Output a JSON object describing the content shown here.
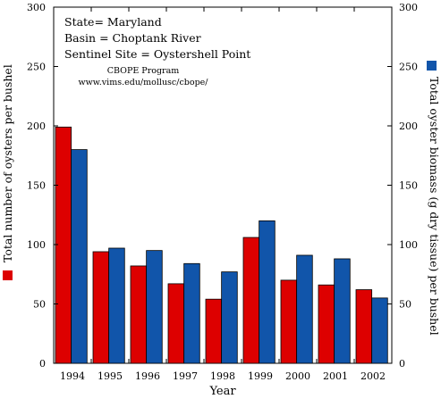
{
  "chart_data": {
    "type": "bar",
    "categories": [
      "1994",
      "1995",
      "1996",
      "1997",
      "1998",
      "1999",
      "2000",
      "2001",
      "2002"
    ],
    "series": [
      {
        "name": "Total number of oysters per bushel",
        "axis": "left",
        "color": "#dd0000",
        "values": [
          199,
          94,
          82,
          67,
          54,
          106,
          70,
          66,
          62
        ]
      },
      {
        "name": "Total oyster biomass (g dry tissue) per bushel",
        "axis": "right",
        "color": "#1155aa",
        "values": [
          180,
          97,
          95,
          84,
          77,
          120,
          91,
          88,
          55
        ]
      }
    ],
    "xlabel": "Year",
    "ylabel_left": "Total number of oysters per bushel",
    "ylabel_right": "Total oyster biomass (g dry tissue) per bushel",
    "ylim": [
      0,
      300
    ],
    "yticks": [
      0,
      50,
      100,
      150,
      200,
      250,
      300
    ],
    "grid": false,
    "legend": "axis-titles",
    "annotations": {
      "state": "State= Maryland",
      "basin": "Basin = Choptank River",
      "site": "Sentinel Site = Oystershell Point",
      "program": "CBOPE Program",
      "url": "www.vims.edu/mollusc/cbope/"
    }
  }
}
